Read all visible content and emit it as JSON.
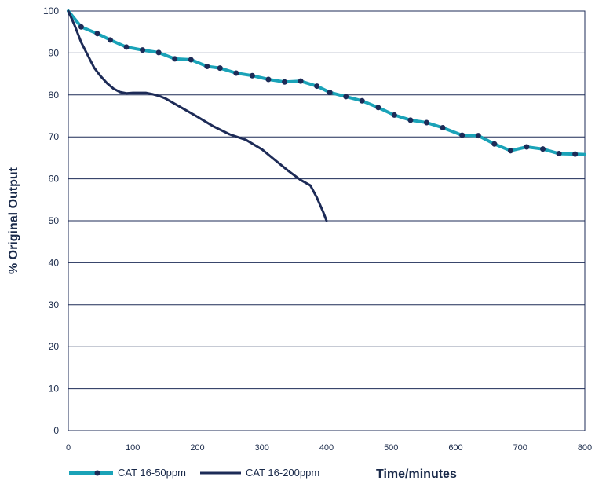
{
  "chart_data": {
    "type": "line",
    "title": "",
    "xlabel": "Time/minutes",
    "ylabel": "% Original Output",
    "xlim": [
      0,
      800
    ],
    "ylim": [
      0,
      100
    ],
    "x_ticks": [
      0,
      100,
      200,
      300,
      400,
      500,
      600,
      700,
      800
    ],
    "y_ticks": [
      0,
      10,
      20,
      30,
      40,
      50,
      60,
      70,
      80,
      90,
      100
    ],
    "grid": "horizontal",
    "legend_position": "bottom-left",
    "series": [
      {
        "name": "CAT 16-50ppm",
        "color": "#1aa3b8",
        "marker": "circle",
        "marker_color": "#1d2b57",
        "x": [
          0,
          20,
          45,
          65,
          90,
          115,
          140,
          165,
          190,
          215,
          235,
          260,
          285,
          310,
          335,
          360,
          385,
          405,
          430,
          455,
          480,
          505,
          530,
          555,
          580,
          610,
          635,
          660,
          685,
          710,
          735,
          760,
          785,
          800
        ],
        "y": [
          100,
          96.2,
          94.6,
          93.1,
          91.4,
          90.7,
          90.1,
          88.6,
          88.4,
          86.8,
          86.4,
          85.2,
          84.6,
          83.7,
          83.1,
          83.3,
          82.1,
          80.6,
          79.6,
          78.6,
          77.0,
          75.2,
          74.0,
          73.4,
          72.2,
          70.4,
          70.3,
          68.3,
          66.7,
          67.6,
          67.1,
          66.0,
          65.9,
          65.8
        ],
        "marker_x": [
          20,
          45,
          65,
          90,
          115,
          140,
          165,
          190,
          215,
          235,
          260,
          285,
          310,
          335,
          360,
          385,
          405,
          430,
          455,
          480,
          505,
          530,
          555,
          580,
          610,
          635,
          660,
          685,
          710,
          735,
          760,
          785
        ],
        "marker_y": [
          96.2,
          94.6,
          93.1,
          91.4,
          90.7,
          90.1,
          88.6,
          88.4,
          86.8,
          86.4,
          85.2,
          84.6,
          83.7,
          83.1,
          83.3,
          82.1,
          80.6,
          79.6,
          78.6,
          77.0,
          75.2,
          74.0,
          73.4,
          72.2,
          70.4,
          70.3,
          68.3,
          66.7,
          67.6,
          67.1,
          66.0,
          65.9
        ]
      },
      {
        "name": "CAT 16-200ppm",
        "color": "#1d2b57",
        "marker": "none",
        "x": [
          0,
          10,
          20,
          30,
          40,
          50,
          60,
          70,
          80,
          90,
          100,
          110,
          120,
          130,
          140,
          150,
          175,
          200,
          225,
          250,
          275,
          300,
          320,
          340,
          360,
          375,
          385,
          395,
          400
        ],
        "y": [
          100,
          96.5,
          92.5,
          89.5,
          86.5,
          84.5,
          82.8,
          81.5,
          80.7,
          80.4,
          80.5,
          80.5,
          80.5,
          80.2,
          79.8,
          79.2,
          77.0,
          74.8,
          72.5,
          70.6,
          69.3,
          67.0,
          64.5,
          62.0,
          59.7,
          58.4,
          55.5,
          52.0,
          50.0
        ]
      }
    ]
  }
}
